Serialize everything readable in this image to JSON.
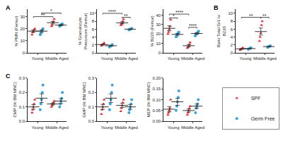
{
  "chart_data": [
    {
      "type": "scatter",
      "panel": "A",
      "y_label": "% PMN (Femur)",
      "categories": [
        "Young",
        "Middle Aged"
      ],
      "ylim": [
        0,
        36
      ],
      "yticks": [
        0,
        10,
        20,
        30
      ],
      "series": [
        {
          "name": "SPF",
          "color": "#e0282e",
          "marker": "triangle-up",
          "values": [
            [
              15,
              17,
              18,
              19,
              20
            ],
            [
              22,
              23,
              25,
              26,
              28
            ]
          ],
          "mean": [
            18,
            25
          ],
          "sem": [
            1,
            1.1
          ]
        },
        {
          "name": "Germ Free",
          "color": "#3ba3dc",
          "marker": "circle",
          "values": [
            [
              15,
              16,
              18,
              19,
              20
            ],
            [
              22,
              23,
              23,
              24,
              24
            ]
          ],
          "mean": [
            18,
            23
          ],
          "sem": [
            1,
            0.5
          ]
        }
      ],
      "annotations": [
        {
          "from": [
            "Young",
            "SPF"
          ],
          "to": [
            "Middle Aged",
            "SPF"
          ],
          "y": 30,
          "text": "**"
        },
        {
          "from": [
            "Young",
            "Germ Free"
          ],
          "to": [
            "Middle Aged",
            "Germ Free"
          ],
          "y": 33,
          "text": "*"
        }
      ]
    },
    {
      "type": "scatter",
      "y_label": [
        "% Granulocyte",
        "Precursors (Femur)"
      ],
      "categories": [
        "Young",
        "Middle Aged"
      ],
      "ylim": [
        0,
        11
      ],
      "yticks": [
        0,
        2,
        4,
        6,
        8,
        10
      ],
      "series": [
        {
          "name": "SPF",
          "color": "#e0282e",
          "marker": "triangle-up",
          "values": [
            [
              1.8,
              2,
              2.1,
              2.3,
              2.5
            ],
            [
              7,
              7.2,
              7.5,
              8,
              8.5
            ]
          ],
          "mean": [
            2.1,
            7.6
          ],
          "sem": [
            0.12,
            0.27
          ]
        },
        {
          "name": "Germ Free",
          "color": "#3ba3dc",
          "marker": "circle",
          "values": [
            [
              1.5,
              1.7,
              1.8,
              1.9,
              2.1
            ],
            [
              5.8,
              5.9,
              6,
              6.1,
              6.2
            ]
          ],
          "mean": [
            1.8,
            6
          ],
          "sem": [
            0.1,
            0.07
          ]
        }
      ],
      "annotations": [
        {
          "from": [
            "Young",
            "SPF"
          ],
          "to": [
            "Middle Aged",
            "SPF"
          ],
          "y": 10,
          "text": "****"
        },
        {
          "from": [
            "Middle Aged",
            "SPF"
          ],
          "to": [
            "Middle Aged",
            "Germ Free"
          ],
          "y": 9,
          "text": "**"
        }
      ]
    },
    {
      "type": "scatter",
      "y_label": "% B220 (Femur)",
      "categories": [
        "Young",
        "Middle Aged"
      ],
      "ylim": [
        0,
        46
      ],
      "yticks": [
        0,
        10,
        20,
        30,
        40
      ],
      "series": [
        {
          "name": "SPF",
          "color": "#e0282e",
          "marker": "triangle-up",
          "values": [
            [
              20,
              22,
              25,
              28,
              35
            ],
            [
              5,
              6,
              7,
              9,
              11
            ]
          ],
          "mean": [
            26,
            7.6
          ],
          "sem": [
            2.6,
            1.1
          ]
        },
        {
          "name": "Germ Free",
          "color": "#3ba3dc",
          "marker": "circle",
          "values": [
            [
              17,
              18,
              20,
              21,
              22
            ],
            [
              18,
              19,
              20,
              21,
              22,
              23
            ]
          ],
          "mean": [
            19.6,
            20.5
          ],
          "sem": [
            0.9,
            0.8
          ]
        }
      ],
      "annotations": [
        {
          "from": [
            "Young",
            "SPF"
          ],
          "to": [
            "Young",
            "Germ Free"
          ],
          "y": 37,
          "text": "*"
        },
        {
          "from": [
            "Young",
            "SPF"
          ],
          "to": [
            "Middle Aged",
            "SPF"
          ],
          "y": 41,
          "text": "****"
        },
        {
          "from": [
            "Middle Aged",
            "SPF"
          ],
          "to": [
            "Middle Aged",
            "Germ Free"
          ],
          "y": 27,
          "text": "****"
        }
      ]
    },
    {
      "type": "scatter",
      "panel": "B",
      "y_label": [
        "Ratio Total Gr1 to",
        "B220"
      ],
      "categories": [
        "Young",
        "Middle Aged"
      ],
      "ylim": [
        0,
        11
      ],
      "yticks": [
        0,
        2,
        4,
        6,
        8,
        10
      ],
      "series": [
        {
          "name": "SPF",
          "color": "#e0282e",
          "marker": "triangle-up",
          "values": [
            [
              0.7,
              0.9,
              1,
              1.1,
              1.3
            ],
            [
              3,
              4,
              5,
              7,
              8
            ]
          ],
          "mean": [
            1,
            5.4
          ],
          "sem": [
            0.1,
            0.9
          ]
        },
        {
          "name": "Germ Free",
          "color": "#3ba3dc",
          "marker": "circle",
          "values": [
            [
              0.9,
              1,
              1.1,
              1.2,
              1.3
            ],
            [
              1.4,
              1.5,
              1.6,
              1.7,
              1.8
            ]
          ],
          "mean": [
            1.1,
            1.6
          ],
          "sem": [
            0.07,
            0.07
          ]
        }
      ],
      "annotations": [
        {
          "from": [
            "Young",
            "SPF"
          ],
          "to": [
            "Middle Aged",
            "SPF"
          ],
          "y": 9,
          "text": "**"
        },
        {
          "from": [
            "Middle Aged",
            "SPF"
          ],
          "to": [
            "Middle Aged",
            "Germ Free"
          ],
          "y": 9,
          "text": "**"
        }
      ]
    },
    {
      "type": "scatter",
      "panel": "C",
      "y_label": "CMP (% BM MNC)",
      "categories": [
        "Young",
        "Middle Aged"
      ],
      "ylim": [
        0,
        0.3
      ],
      "yticks": [
        {
          "value": 0,
          "label": "0.0"
        },
        {
          "value": 0.1,
          "label": "0.1"
        },
        {
          "value": 0.2,
          "label": "0.2"
        },
        {
          "value": 0.3,
          "label": "0.3"
        }
      ],
      "series": [
        {
          "name": "SPF",
          "color": "#e0282e",
          "marker": "triangle-up",
          "values": [
            [
              0.06,
              0.08,
              0.1,
              0.12,
              0.15
            ],
            [
              0.1,
              0.11,
              0.12,
              0.13,
              0.14
            ]
          ],
          "mean": [
            0.1,
            0.12
          ],
          "sem": [
            0.016,
            0.007
          ]
        },
        {
          "name": "Germ Free",
          "color": "#3ba3dc",
          "marker": "circle",
          "values": [
            [
              0.08,
              0.12,
              0.15,
              0.2,
              0.25
            ],
            [
              0.1,
              0.12,
              0.14,
              0.16,
              0.2
            ]
          ],
          "mean": [
            0.16,
            0.14
          ],
          "sem": [
            0.03,
            0.017
          ]
        }
      ]
    },
    {
      "type": "scatter",
      "y_label": "GMP (% BM MNC)",
      "categories": [
        "Young",
        "Middle Aged"
      ],
      "ylim": [
        0,
        0.3
      ],
      "yticks": [
        {
          "value": 0,
          "label": "0.0"
        },
        {
          "value": 0.1,
          "label": "0.1"
        },
        {
          "value": 0.2,
          "label": "0.2"
        },
        {
          "value": 0.3,
          "label": "0.3"
        }
      ],
      "series": [
        {
          "name": "SPF",
          "color": "#e0282e",
          "marker": "triangle-up",
          "values": [
            [
              0.05,
              0.08,
              0.1,
              0.12,
              0.15
            ],
            [
              0.07,
              0.09,
              0.11,
              0.13,
              0.15
            ]
          ],
          "mean": [
            0.1,
            0.11
          ],
          "sem": [
            0.017,
            0.014
          ]
        },
        {
          "name": "Germ Free",
          "color": "#3ba3dc",
          "marker": "circle",
          "values": [
            [
              0.08,
              0.12,
              0.15,
              0.2,
              0.25
            ],
            [
              0.06,
              0.08,
              0.1,
              0.12,
              0.15
            ]
          ],
          "mean": [
            0.16,
            0.1
          ],
          "sem": [
            0.03,
            0.016
          ]
        }
      ]
    },
    {
      "type": "scatter",
      "y_label": "MEP (% BM MNC)",
      "legend": "right",
      "categories": [
        "Young",
        "Middle Aged"
      ],
      "ylim": [
        0,
        0.2
      ],
      "yticks": [
        {
          "value": 0,
          "label": "0.00"
        },
        {
          "value": 0.05,
          "label": "0.05"
        },
        {
          "value": 0.1,
          "label": "0.10"
        },
        {
          "value": 0.15,
          "label": "0.15"
        },
        {
          "value": 0.2,
          "label": "0.20"
        }
      ],
      "series": [
        {
          "name": "SPF",
          "color": "#e0282e",
          "marker": "triangle-up",
          "values": [
            [
              0.03,
              0.04,
              0.05,
              0.06,
              0.1
            ],
            [
              0.03,
              0.04,
              0.05,
              0.06,
              0.07
            ]
          ],
          "mean": [
            0.056,
            0.05
          ],
          "sem": [
            0.012,
            0.007
          ]
        },
        {
          "name": "Germ Free",
          "color": "#3ba3dc",
          "marker": "circle",
          "values": [
            [
              0.05,
              0.07,
              0.09,
              0.11,
              0.14
            ],
            [
              0.04,
              0.06,
              0.07,
              0.08,
              0.1
            ]
          ],
          "mean": [
            0.09,
            0.07
          ],
          "sem": [
            0.016,
            0.01
          ]
        }
      ]
    }
  ]
}
